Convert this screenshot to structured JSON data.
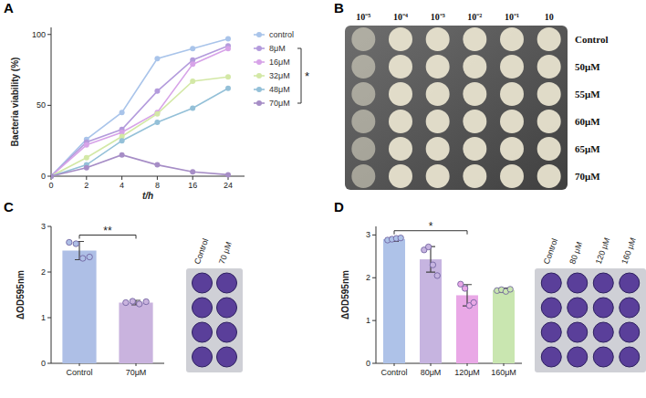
{
  "panel_labels": [
    "A",
    "B",
    "C",
    "D"
  ],
  "chart_data": [
    {
      "type": "line",
      "x_label": "t/h",
      "y_label": "Bacteria viability (%)",
      "categories": [
        "0",
        "2",
        "4",
        "8",
        "16",
        "24"
      ],
      "ylim": [
        0,
        105
      ],
      "yticks": [
        0,
        50,
        100
      ],
      "legend": "right",
      "marker": "circle",
      "series": [
        {
          "name": "control",
          "color": "#a9c4ea",
          "values": [
            0,
            26,
            45,
            83,
            90,
            97
          ]
        },
        {
          "name": "8μM",
          "color": "#b39bdc",
          "values": [
            0,
            24,
            33,
            60,
            82,
            92
          ]
        },
        {
          "name": "16μM",
          "color": "#d7a3e8",
          "values": [
            0,
            22,
            31,
            45,
            79,
            90
          ]
        },
        {
          "name": "32μM",
          "color": "#d3e8a6",
          "values": [
            0,
            13,
            28,
            44,
            67,
            70
          ]
        },
        {
          "name": "48μM",
          "color": "#94c0d8",
          "values": [
            0,
            8,
            25,
            38,
            48,
            62
          ]
        },
        {
          "name": "70μM",
          "color": "#a68dc6",
          "values": [
            0,
            6,
            15,
            8,
            3,
            1
          ]
        }
      ],
      "annotations": [
        {
          "text": "*",
          "series": [
            "8μM",
            "70μM"
          ]
        }
      ]
    },
    {
      "type": "bar",
      "y_label": "ΔOD595nm",
      "categories": [
        "Control",
        "70μM"
      ],
      "values": [
        2.47,
        1.33
      ],
      "errors": [
        0.2,
        0.05
      ],
      "points": [
        [
          2.65,
          2.62,
          2.3,
          2.33
        ],
        [
          1.33,
          1.36,
          1.3,
          1.35
        ]
      ],
      "colors": [
        "#aebfe6",
        "#c9b3de"
      ],
      "ylim": [
        0,
        3
      ],
      "yticks": [
        0,
        1,
        2,
        3
      ],
      "annotations": [
        {
          "text": "**",
          "categories": [
            "Control",
            "70μM"
          ]
        }
      ]
    },
    {
      "type": "bar",
      "y_label": "ΔOD595nm",
      "categories": [
        "Control",
        "80μM",
        "120μM",
        "160μM"
      ],
      "values": [
        2.9,
        2.43,
        1.59,
        1.71
      ],
      "errors": [
        0.05,
        0.3,
        0.25,
        0.05
      ],
      "points": [
        [
          2.88,
          2.9,
          2.92,
          2.93
        ],
        [
          2.65,
          2.72,
          2.3,
          2.05
        ],
        [
          1.85,
          1.75,
          1.35,
          1.42
        ],
        [
          1.7,
          1.72,
          1.68,
          1.73
        ]
      ],
      "colors": [
        "#aec2e8",
        "#c6b4e0",
        "#e9a8e6",
        "#c9e6b0"
      ],
      "ylim": [
        0,
        3.2
      ],
      "yticks": [
        0,
        1,
        2,
        3
      ],
      "annotations": [
        {
          "text": "*",
          "categories": [
            "Control",
            "120μM"
          ]
        }
      ]
    }
  ],
  "spot_assay": {
    "columns": [
      "10⁻⁵",
      "10⁻⁴",
      "10⁻³",
      "10⁻²",
      "10⁻¹",
      "10"
    ],
    "rows": [
      "Control",
      "50μM",
      "55μM",
      "60μM",
      "65μM",
      "70μM"
    ]
  },
  "well_images": [
    {
      "labels": [
        "Control",
        "70 μM"
      ]
    },
    {
      "labels": [
        "Control",
        "80 μM",
        "120 μM",
        "160 μM"
      ]
    }
  ]
}
